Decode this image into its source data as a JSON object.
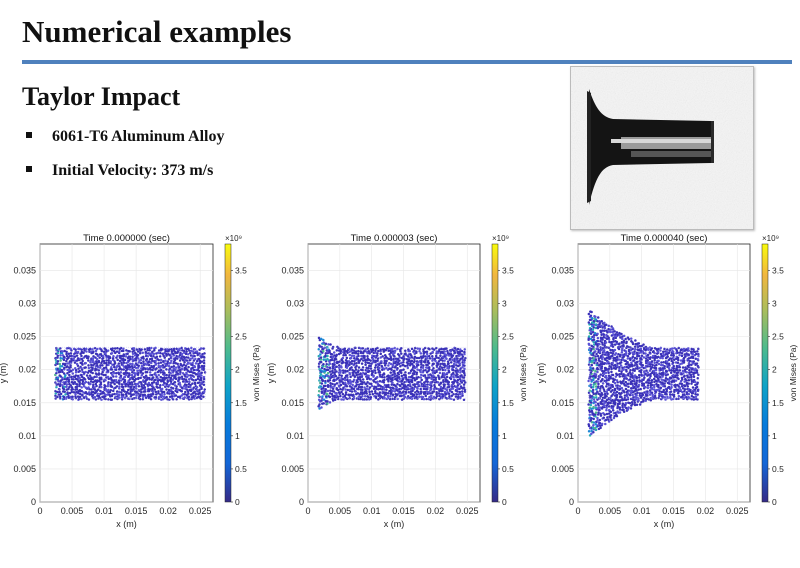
{
  "slide": {
    "title": "Numerical examples",
    "subtitle": "Taylor Impact",
    "bullets": [
      "6061-T6 Aluminum Alloy",
      "Initial Velocity: 373 m/s"
    ],
    "accent_color": "#4f81bd"
  },
  "chart_data": [
    {
      "type": "scatter",
      "title": "Time 0.000000 (sec)",
      "xlabel": "x (m)",
      "ylabel": "y (m)",
      "xlim": [
        0,
        0.027
      ],
      "ylim": [
        0,
        0.039
      ],
      "xticks": [
        "0",
        "0.005",
        "0.01",
        "0.015",
        "0.02",
        "0.025"
      ],
      "yticks": [
        "0",
        "0.005",
        "0.01",
        "0.015",
        "0.02",
        "0.025",
        "0.03",
        "0.035"
      ],
      "colorbar": {
        "label": "von Mises (Pa)",
        "exponent": "×10⁹",
        "ticks": [
          "0",
          "0.5",
          "1",
          "1.5",
          "2",
          "2.5",
          "3",
          "3.5"
        ],
        "range": [
          0,
          3.9
        ]
      },
      "region": {
        "x_start": 0.0025,
        "x_end": 0.0258,
        "y_low": 0.0156,
        "y_high": 0.0234,
        "head_x_end": 0.0025,
        "head_half_height": 0.0039
      }
    },
    {
      "type": "scatter",
      "title": "Time 0.000003 (sec)",
      "xlabel": "x (m)",
      "ylabel": "y (m)",
      "xlim": [
        0,
        0.027
      ],
      "ylim": [
        0,
        0.039
      ],
      "xticks": [
        "0",
        "0.005",
        "0.01",
        "0.015",
        "0.02",
        "0.025"
      ],
      "yticks": [
        "0",
        "0.005",
        "0.01",
        "0.015",
        "0.02",
        "0.025",
        "0.03",
        "0.035"
      ],
      "colorbar": {
        "label": "von Mises (Pa)",
        "exponent": "×10⁹",
        "ticks": [
          "0",
          "0.5",
          "1",
          "1.5",
          "2",
          "2.5",
          "3",
          "3.5"
        ],
        "range": [
          0,
          3.9
        ]
      },
      "region": {
        "x_start": 0.0018,
        "x_end": 0.0248,
        "y_low": 0.0156,
        "y_high": 0.0234,
        "head_x_end": 0.005,
        "head_half_height": 0.0055
      }
    },
    {
      "type": "scatter",
      "title": "Time 0.000040 (sec)",
      "xlabel": "x (m)",
      "ylabel": "y (m)",
      "xlim": [
        0,
        0.027
      ],
      "ylim": [
        0,
        0.039
      ],
      "xticks": [
        "0",
        "0.005",
        "0.01",
        "0.015",
        "0.02",
        "0.025"
      ],
      "yticks": [
        "0",
        "0.005",
        "0.01",
        "0.015",
        "0.02",
        "0.025",
        "0.03",
        "0.035"
      ],
      "colorbar": {
        "label": "von Mises (Pa)",
        "exponent": "×10⁹",
        "ticks": [
          "0",
          "0.5",
          "1",
          "1.5",
          "2",
          "2.5",
          "3",
          "3.5"
        ],
        "range": [
          0,
          3.9
        ]
      },
      "region": {
        "x_start": 0.0018,
        "x_end": 0.019,
        "y_low": 0.0156,
        "y_high": 0.0234,
        "head_x_end": 0.012,
        "head_half_height": 0.0095
      }
    }
  ]
}
